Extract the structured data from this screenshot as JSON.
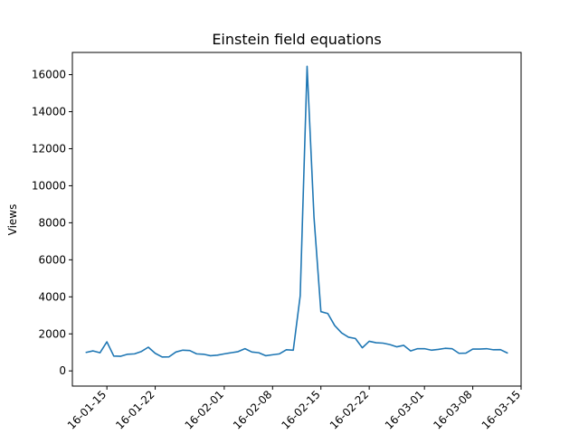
{
  "chart_data": {
    "type": "line",
    "title": "Einstein field equations",
    "xlabel": "",
    "ylabel": "Views",
    "y_ticks": [
      0,
      2000,
      4000,
      6000,
      8000,
      10000,
      12000,
      14000,
      16000
    ],
    "ylim": [
      -820,
      17200
    ],
    "xlim": [
      "2016-01-10",
      "2016-03-15"
    ],
    "x_tick_dates": [
      "2016-01-15",
      "2016-01-22",
      "2016-02-01",
      "2016-02-08",
      "2016-02-15",
      "2016-02-22",
      "2016-03-01",
      "2016-03-08",
      "2016-03-15"
    ],
    "x_tick_labels": [
      "16-01-15",
      "16-01-22",
      "16-02-01",
      "16-02-08",
      "16-02-15",
      "16-02-22",
      "16-03-01",
      "16-03-08",
      "16-03-15"
    ],
    "grid": false,
    "line_color": "#1f77b4",
    "series": [
      {
        "name": "",
        "x": [
          "2016-01-12",
          "2016-01-13",
          "2016-01-14",
          "2016-01-15",
          "2016-01-16",
          "2016-01-17",
          "2016-01-18",
          "2016-01-19",
          "2016-01-20",
          "2016-01-21",
          "2016-01-22",
          "2016-01-23",
          "2016-01-24",
          "2016-01-25",
          "2016-01-26",
          "2016-01-27",
          "2016-01-28",
          "2016-01-29",
          "2016-01-30",
          "2016-01-31",
          "2016-02-01",
          "2016-02-02",
          "2016-02-03",
          "2016-02-04",
          "2016-02-05",
          "2016-02-06",
          "2016-02-07",
          "2016-02-08",
          "2016-02-09",
          "2016-02-10",
          "2016-02-11",
          "2016-02-12",
          "2016-02-13",
          "2016-02-14",
          "2016-02-15",
          "2016-02-16",
          "2016-02-17",
          "2016-02-18",
          "2016-02-19",
          "2016-02-20",
          "2016-02-21",
          "2016-02-22",
          "2016-02-23",
          "2016-02-24",
          "2016-02-25",
          "2016-02-26",
          "2016-02-27",
          "2016-02-28",
          "2016-02-29",
          "2016-03-01",
          "2016-03-02",
          "2016-03-03",
          "2016-03-04",
          "2016-03-05",
          "2016-03-06",
          "2016-03-07",
          "2016-03-08",
          "2016-03-09",
          "2016-03-10",
          "2016-03-11",
          "2016-03-12",
          "2016-03-13"
        ],
        "values": [
          1000,
          1080,
          980,
          1570,
          800,
          790,
          900,
          920,
          1050,
          1280,
          950,
          750,
          760,
          1020,
          1120,
          1100,
          920,
          900,
          820,
          850,
          920,
          980,
          1040,
          1200,
          1020,
          980,
          820,
          870,
          920,
          1140,
          1120,
          4050,
          16450,
          8300,
          3200,
          3100,
          2450,
          2050,
          1820,
          1750,
          1250,
          1600,
          1520,
          1500,
          1420,
          1300,
          1380,
          1080,
          1200,
          1200,
          1120,
          1160,
          1220,
          1200,
          950,
          960,
          1180,
          1180,
          1200,
          1140,
          1150,
          970
        ]
      }
    ]
  }
}
